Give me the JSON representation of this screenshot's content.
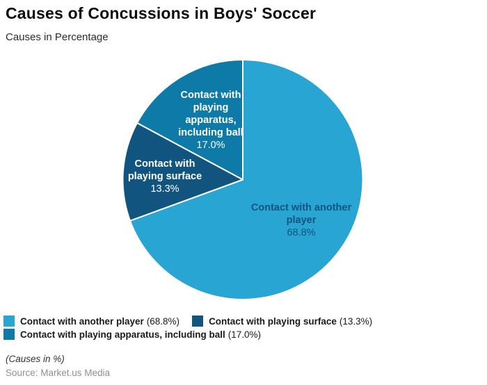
{
  "header": {
    "title": "Causes of Concussions in Boys' Soccer",
    "subtitle": "Causes in Percentage"
  },
  "chart_data": {
    "type": "pie",
    "title": "Causes of Concussions in Boys' Soccer",
    "subtitle": "Causes in Percentage",
    "unit": "percent",
    "start_angle_deg": 0,
    "direction": "clockwise",
    "legend_position": "bottom-left",
    "slices": [
      {
        "label": "Contact with another player",
        "value": 68.8,
        "pct_label": "68.8%",
        "legend_suffix": "(68.8%)",
        "color": "#29a5d3",
        "text_color": "#11547f"
      },
      {
        "label": "Contact with playing surface",
        "value": 13.3,
        "pct_label": "13.3%",
        "legend_suffix": "(13.3%)",
        "color": "#11547f",
        "text_color": "#ffffff"
      },
      {
        "label": "Contact with playing apparatus, including ball",
        "value": 17.0,
        "pct_label": "17.0%",
        "legend_suffix": "(17.0%)",
        "color": "#0d7aa8",
        "text_color": "#ffffff"
      }
    ]
  },
  "footer": {
    "note": "(Causes in %)",
    "source": "Source: Market.us Media"
  }
}
